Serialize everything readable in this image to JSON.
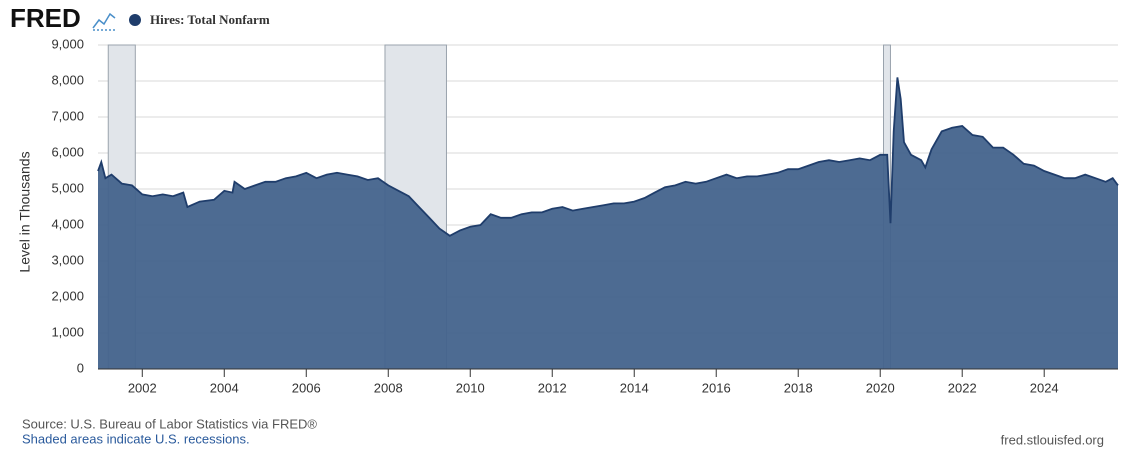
{
  "logo": "FRED",
  "chart_data": {
    "type": "area",
    "title": "Hires: Total Nonfarm",
    "ylabel": "Level in Thousands",
    "source": "Source: U.S. Bureau of Labor Statistics via FRED®",
    "note": "Shaded areas indicate U.S. recessions.",
    "site": "fred.stlouisfed.org",
    "xlim": [
      2000.92,
      2025.8
    ],
    "ylim": [
      0,
      9000
    ],
    "xticks": [
      2002,
      2004,
      2006,
      2008,
      2010,
      2012,
      2014,
      2016,
      2018,
      2020,
      2022,
      2024
    ],
    "yticks": [
      0,
      {
        "value": 1000,
        "label": "1,000"
      },
      {
        "value": 2000,
        "label": "2,000"
      },
      {
        "value": 3000,
        "label": "3,000"
      },
      {
        "value": 4000,
        "label": "4,000"
      },
      {
        "value": 5000,
        "label": "5,000"
      },
      {
        "value": 6000,
        "label": "6,000"
      },
      {
        "value": 7000,
        "label": "7,000"
      },
      {
        "value": 8000,
        "label": "8,000"
      },
      {
        "value": 9000,
        "label": "9,000"
      }
    ],
    "grid": true,
    "recessions": [
      [
        2001.17,
        2001.83
      ],
      [
        2007.92,
        2009.42
      ],
      [
        2020.08,
        2020.25
      ]
    ],
    "x": [
      2000.92,
      2001.0,
      2001.1,
      2001.25,
      2001.5,
      2001.75,
      2002.0,
      2002.25,
      2002.5,
      2002.75,
      2003.0,
      2003.1,
      2003.4,
      2003.75,
      2004.0,
      2004.2,
      2004.25,
      2004.5,
      2004.75,
      2005.0,
      2005.25,
      2005.5,
      2005.75,
      2006.0,
      2006.25,
      2006.5,
      2006.75,
      2007.0,
      2007.25,
      2007.5,
      2007.75,
      2008.0,
      2008.25,
      2008.5,
      2008.75,
      2009.0,
      2009.25,
      2009.5,
      2009.75,
      2010.0,
      2010.25,
      2010.5,
      2010.75,
      2011.0,
      2011.25,
      2011.5,
      2011.75,
      2012.0,
      2012.25,
      2012.5,
      2012.75,
      2013.0,
      2013.25,
      2013.5,
      2013.75,
      2014.0,
      2014.25,
      2014.5,
      2014.75,
      2015.0,
      2015.25,
      2015.5,
      2015.75,
      2016.0,
      2016.25,
      2016.5,
      2016.75,
      2017.0,
      2017.25,
      2017.5,
      2017.75,
      2018.0,
      2018.25,
      2018.5,
      2018.75,
      2019.0,
      2019.25,
      2019.5,
      2019.75,
      2020.0,
      2020.17,
      2020.25,
      2020.33,
      2020.42,
      2020.5,
      2020.58,
      2020.75,
      2021.0,
      2021.1,
      2021.25,
      2021.5,
      2021.75,
      2022.0,
      2022.25,
      2022.5,
      2022.75,
      2023.0,
      2023.25,
      2023.5,
      2023.75,
      2024.0,
      2024.25,
      2024.5,
      2024.75,
      2025.0,
      2025.25,
      2025.5,
      2025.67,
      2025.8
    ],
    "series": [
      {
        "name": "Hires: Total Nonfarm",
        "color": "#1f3d6b",
        "fill": "#43638c",
        "values": [
          5500,
          5750,
          5300,
          5400,
          5150,
          5100,
          4850,
          4800,
          4850,
          4800,
          4900,
          4500,
          4650,
          4700,
          4950,
          4900,
          5200,
          5000,
          5100,
          5200,
          5200,
          5300,
          5350,
          5450,
          5300,
          5400,
          5450,
          5400,
          5350,
          5250,
          5300,
          5100,
          4950,
          4800,
          4500,
          4200,
          3900,
          3700,
          3850,
          3950,
          4000,
          4300,
          4200,
          4200,
          4300,
          4350,
          4350,
          4450,
          4500,
          4400,
          4450,
          4500,
          4550,
          4600,
          4600,
          4650,
          4750,
          4900,
          5050,
          5100,
          5200,
          5150,
          5200,
          5300,
          5400,
          5300,
          5350,
          5350,
          5400,
          5450,
          5550,
          5550,
          5650,
          5750,
          5800,
          5750,
          5800,
          5850,
          5800,
          5950,
          5950,
          4050,
          6600,
          8100,
          7500,
          6300,
          5950,
          5800,
          5600,
          6100,
          6600,
          6700,
          6750,
          6500,
          6450,
          6150,
          6150,
          5950,
          5700,
          5650,
          5500,
          5400,
          5300,
          5300,
          5400,
          5300,
          5200,
          5300,
          5100
        ]
      }
    ]
  }
}
